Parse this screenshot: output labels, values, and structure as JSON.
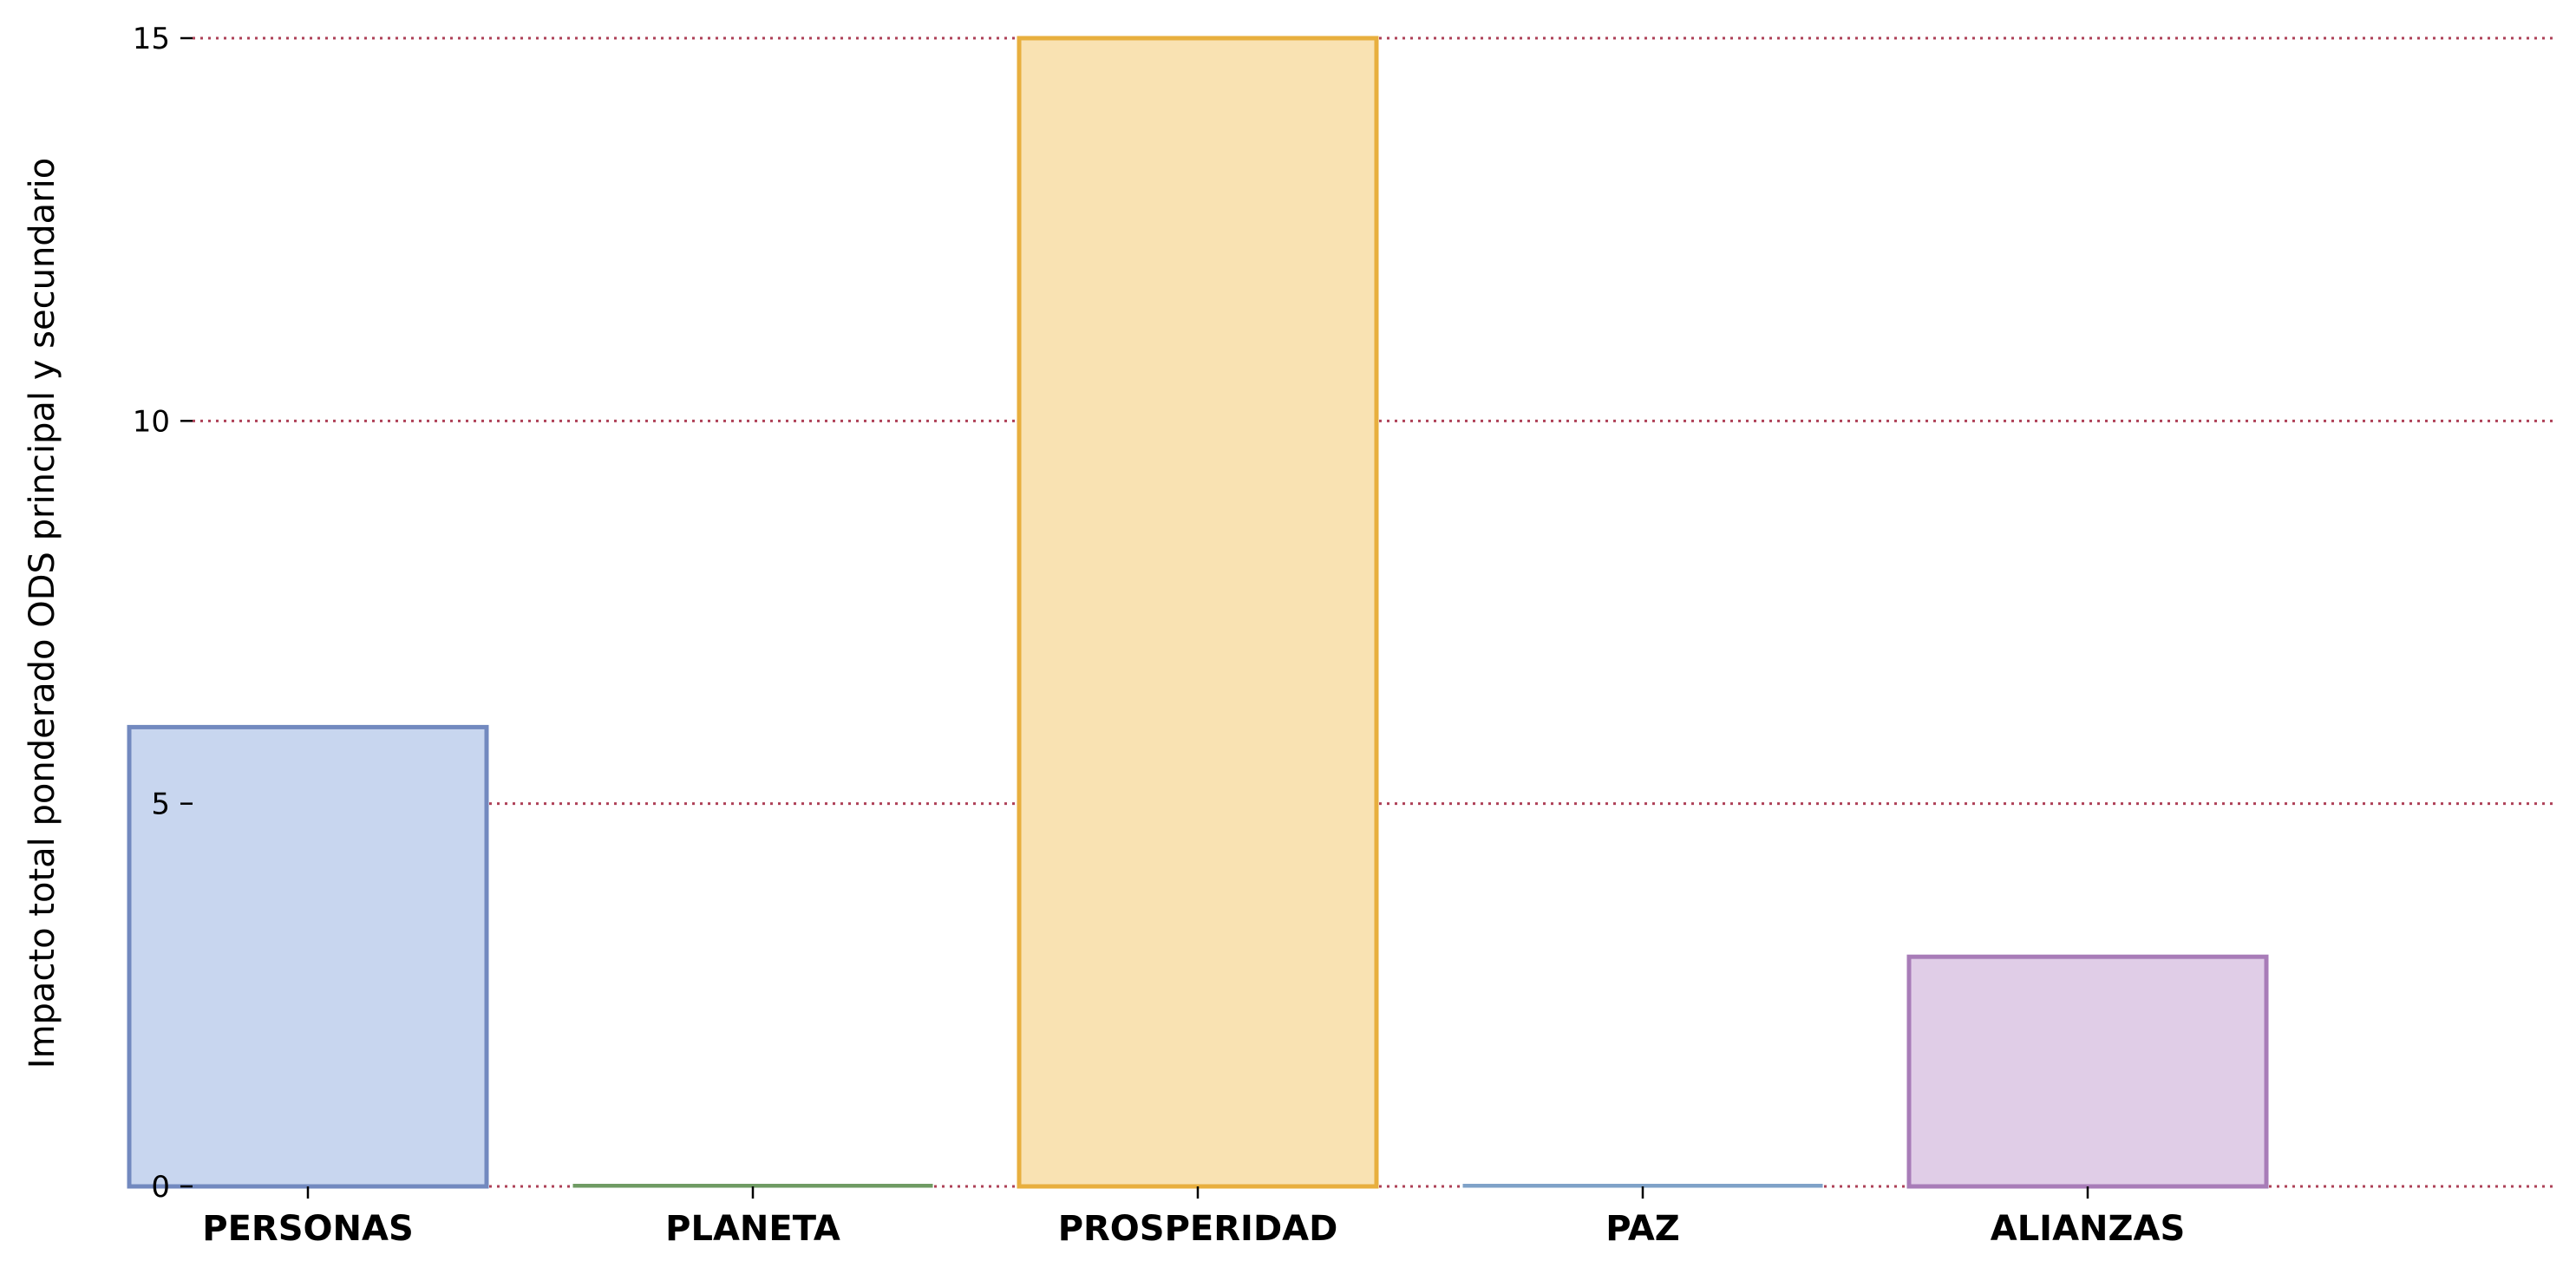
{
  "chart_data": {
    "type": "bar",
    "categories": [
      "PERSONAS",
      "PLANETA",
      "PROSPERIDAD",
      "PAZ",
      "ALIANZAS"
    ],
    "values": [
      6,
      0,
      15,
      0,
      3
    ],
    "ylabel": "Impacto total ponderado ODS principal y secundario",
    "xlabel": "",
    "ylim": [
      0,
      15
    ],
    "yticks": [
      0,
      5,
      10,
      15
    ],
    "ytick_labels": [
      "0",
      "5",
      "10",
      "15"
    ],
    "grid": "horizontal dotted",
    "colors": {
      "fills": [
        "#c8d6ef",
        "#cfe3c4",
        "#f9e2b2",
        "#c8dcef",
        "#e0cde7"
      ],
      "edges": [
        "#7289bf",
        "#6f9b63",
        "#e8af3e",
        "#7fa2c8",
        "#a87cb8"
      ],
      "grid": "#a0203a"
    }
  }
}
